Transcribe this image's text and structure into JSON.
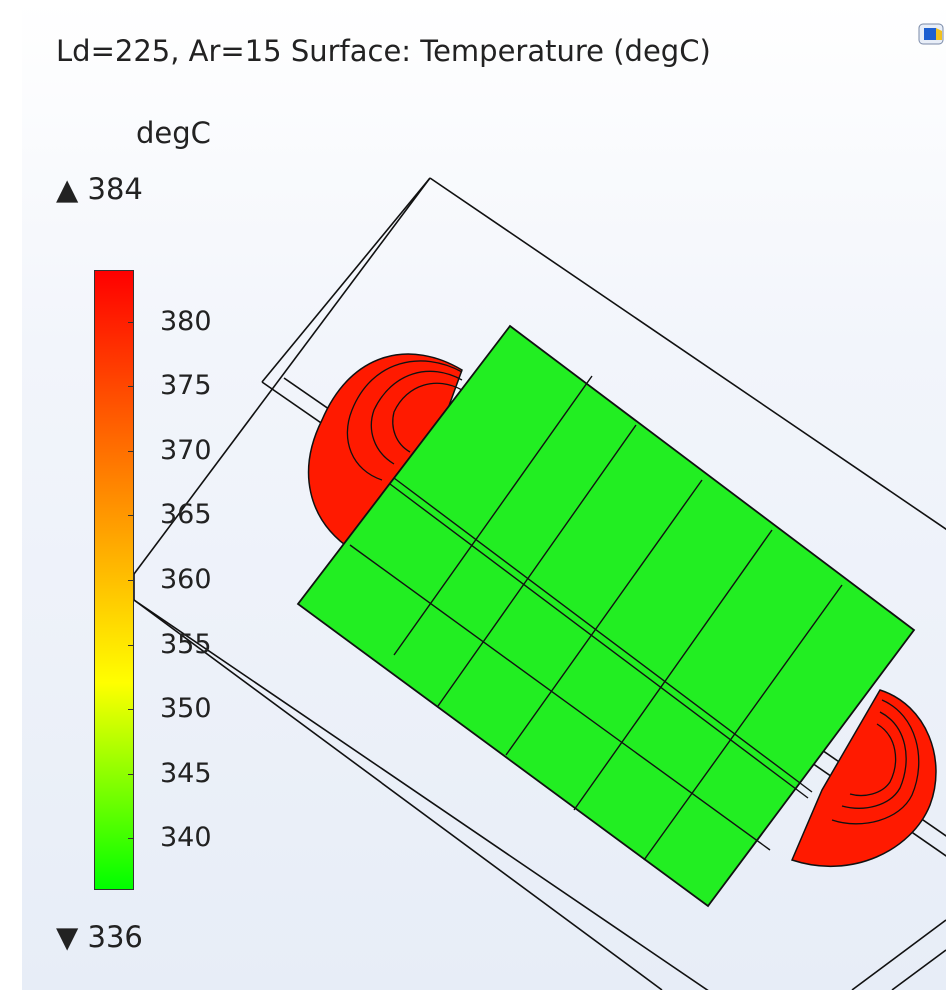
{
  "plot": {
    "title": "Ld=225, Ar=15   Surface: Temperature (degC)"
  },
  "colorbar": {
    "unit": "degC",
    "max_label": "▲ 384",
    "min_label": "▼ 336",
    "min": 336,
    "max": 384,
    "ticks": [
      {
        "value": 380,
        "label": "380"
      },
      {
        "value": 375,
        "label": "375"
      },
      {
        "value": 370,
        "label": "370"
      },
      {
        "value": 365,
        "label": "365"
      },
      {
        "value": 360,
        "label": "360"
      },
      {
        "value": 355,
        "label": "355"
      },
      {
        "value": 350,
        "label": "350"
      },
      {
        "value": 345,
        "label": "345"
      },
      {
        "value": 340,
        "label": "340"
      }
    ],
    "colors": [
      "#00ff00",
      "#ffff00",
      "#ff8000",
      "#ff0000"
    ]
  },
  "geometry": {
    "plate_color": "#22ee22",
    "cap_color": "#ff1a00",
    "edge_color": "#111111"
  },
  "toolbar": {
    "icon": "view-icon"
  }
}
